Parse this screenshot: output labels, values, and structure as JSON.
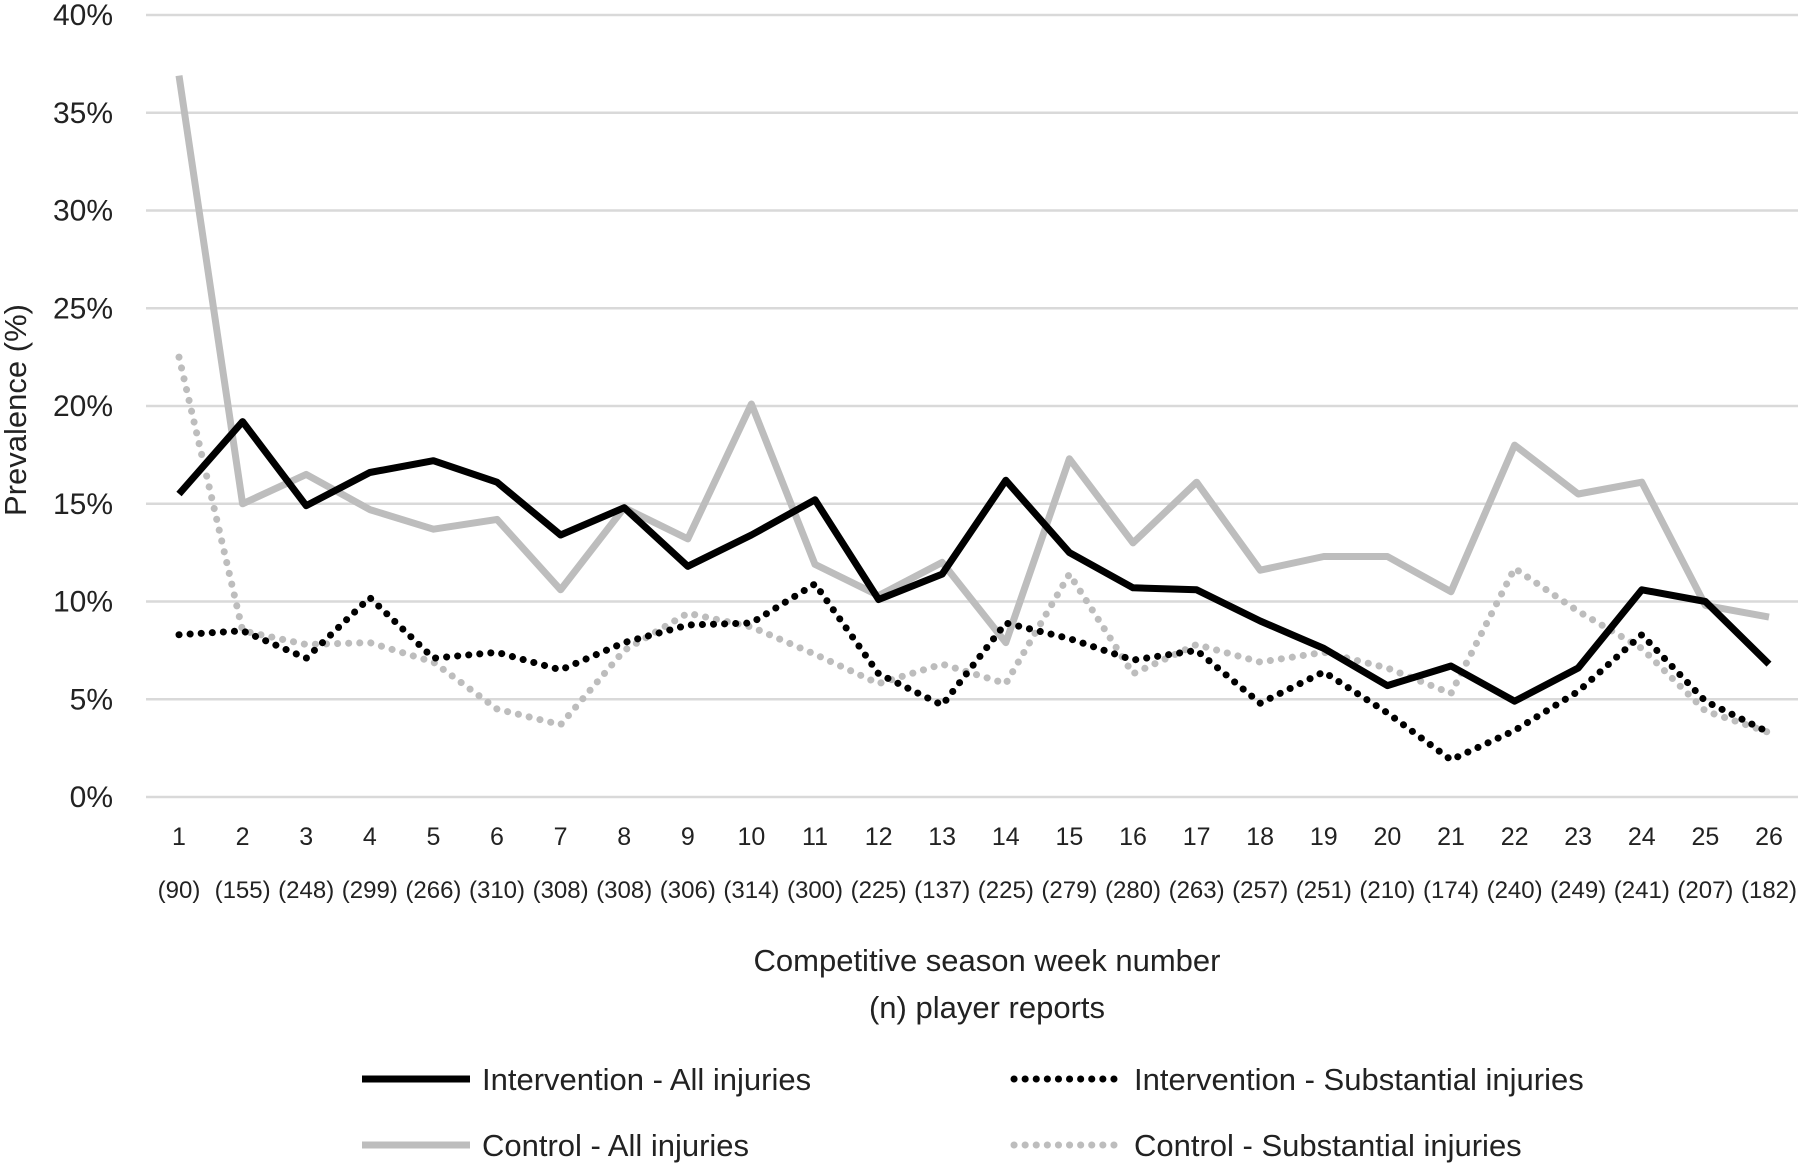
{
  "chart_data": {
    "type": "line",
    "xlabel": "Competitive season week number",
    "xlabel2": "(n) player reports",
    "ylabel": "Prevalence (%)",
    "ylim": [
      0,
      40
    ],
    "yticks": [
      0,
      5,
      10,
      15,
      20,
      25,
      30,
      35,
      40
    ],
    "ytick_labels": [
      "0%",
      "5%",
      "10%",
      "15%",
      "20%",
      "25%",
      "30%",
      "35%",
      "40%"
    ],
    "grid": true,
    "legend_position": "bottom",
    "categories": [
      "1",
      "2",
      "3",
      "4",
      "5",
      "6",
      "7",
      "8",
      "9",
      "10",
      "11",
      "12",
      "13",
      "14",
      "15",
      "16",
      "17",
      "18",
      "19",
      "20",
      "21",
      "22",
      "23",
      "24",
      "25",
      "26"
    ],
    "counts": [
      "(90)",
      "(155)",
      "(248)",
      "(299)",
      "(266)",
      "(310)",
      "(308)",
      "(308)",
      "(306)",
      "(314)",
      "(300)",
      "(225)",
      "(137)",
      "(225)",
      "(279)",
      "(280)",
      "(263)",
      "(257)",
      "(251)",
      "(210)",
      "(174)",
      "(240)",
      "(249)",
      "(241)",
      "(207)",
      "(182)"
    ],
    "series": [
      {
        "name": "Intervention - All injuries",
        "color": "#000000",
        "style": "solid",
        "values": [
          15.5,
          19.2,
          14.9,
          16.6,
          17.2,
          16.1,
          13.4,
          14.8,
          11.8,
          13.4,
          15.2,
          10.1,
          11.4,
          16.2,
          12.5,
          10.7,
          10.6,
          9.0,
          7.6,
          5.7,
          6.7,
          4.9,
          6.6,
          10.6,
          10.0,
          6.8
        ]
      },
      {
        "name": "Intervention - Substantial injuries",
        "color": "#000000",
        "style": "dotted",
        "values": [
          8.3,
          8.5,
          7.1,
          10.2,
          7.1,
          7.4,
          6.5,
          7.9,
          8.8,
          8.9,
          10.9,
          6.3,
          4.7,
          8.9,
          8.1,
          7.0,
          7.5,
          4.8,
          6.4,
          4.3,
          1.9,
          3.4,
          5.4,
          8.3,
          4.9,
          3.3
        ]
      },
      {
        "name": "Control - All injuries",
        "color": "#bdbdbd",
        "style": "solid",
        "values": [
          36.9,
          15.0,
          16.5,
          14.7,
          13.7,
          14.2,
          10.6,
          14.8,
          13.2,
          20.1,
          11.9,
          10.3,
          12.0,
          7.9,
          17.3,
          13.0,
          16.1,
          11.6,
          12.3,
          12.3,
          10.5,
          18.0,
          15.5,
          16.1,
          9.8,
          9.2
        ]
      },
      {
        "name": "Control - Substantial injuries",
        "color": "#bdbdbd",
        "style": "dotted",
        "values": [
          22.5,
          8.5,
          7.8,
          7.9,
          6.9,
          4.5,
          3.7,
          7.5,
          9.4,
          8.7,
          7.3,
          5.8,
          6.8,
          5.8,
          11.4,
          6.3,
          7.8,
          6.9,
          7.4,
          6.6,
          5.3,
          11.7,
          9.5,
          7.6,
          4.4,
          3.3
        ]
      }
    ]
  }
}
